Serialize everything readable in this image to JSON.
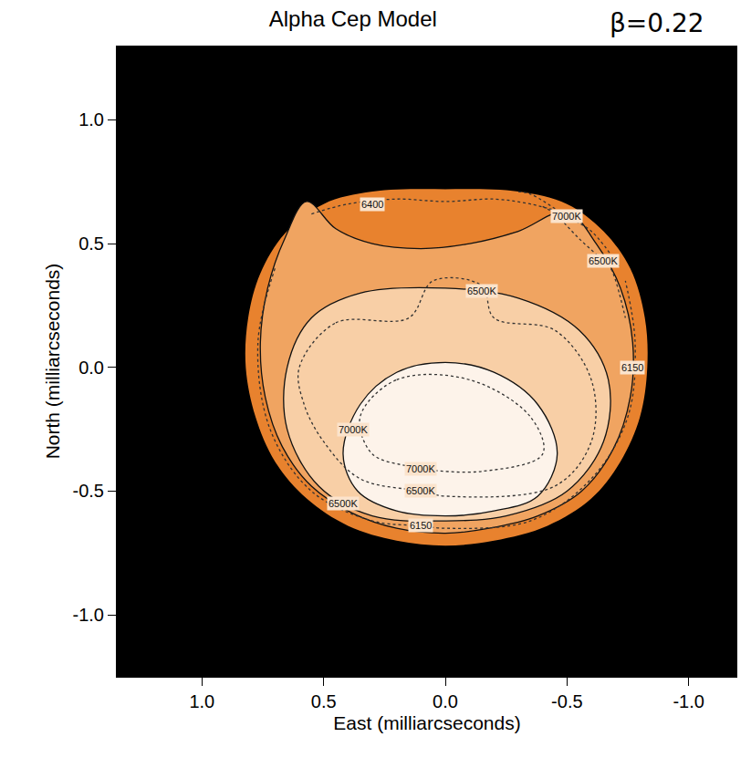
{
  "chart_data": {
    "type": "contour_map",
    "title": "Alpha Cep Model",
    "annotations": [
      "β=0.22"
    ],
    "x_label": "East (milliarcseconds)",
    "y_label": "North (milliarcseconds)",
    "xlim": [
      1.35,
      -1.2
    ],
    "ylim": [
      -1.25,
      1.3
    ],
    "xticks": [
      {
        "value": 1,
        "label": "1.0"
      },
      0.5,
      {
        "value": 0,
        "label": "0.0"
      },
      -0.5,
      {
        "value": -1,
        "label": "-1.0"
      }
    ],
    "yticks": [
      {
        "value": -1,
        "label": "-1.0"
      },
      -0.5,
      {
        "value": 0,
        "label": "0.0"
      },
      0.5,
      {
        "value": 1,
        "label": "1.0"
      }
    ],
    "grid": false,
    "series": [
      {
        "type": "area",
        "color": "#e8822e",
        "line_style": "none",
        "x": [
          0,
          -0.3,
          -0.5,
          -0.65,
          -0.76,
          -0.82,
          -0.83,
          -0.8,
          -0.72,
          -0.6,
          -0.42,
          -0.2,
          0,
          0.2,
          0.4,
          0.57,
          0.7,
          0.78,
          0.82,
          0.81,
          0.76,
          0.66,
          0.5,
          0.3,
          0
        ],
        "y": [
          0.72,
          0.71,
          0.66,
          0.55,
          0.4,
          0.2,
          0,
          -0.2,
          -0.38,
          -0.53,
          -0.64,
          -0.7,
          -0.72,
          -0.7,
          -0.64,
          -0.53,
          -0.38,
          -0.2,
          0,
          0.2,
          0.38,
          0.54,
          0.66,
          0.71,
          0.72
        ]
      },
      {
        "type": "area",
        "color": "#f0a461",
        "line_style": "solid",
        "x": [
          0.57,
          0.45,
          0.3,
          0.1,
          -0.1,
          -0.3,
          -0.5,
          -0.62,
          -0.72,
          -0.77,
          -0.76,
          -0.69,
          -0.56,
          -0.38,
          -0.18,
          0,
          0.2,
          0.38,
          0.55,
          0.67,
          0.74,
          0.76,
          0.73,
          0.66,
          0.57
        ],
        "y": [
          0.67,
          0.56,
          0.5,
          0.48,
          0.5,
          0.55,
          0.63,
          0.5,
          0.32,
          0.1,
          -0.12,
          -0.33,
          -0.5,
          -0.6,
          -0.65,
          -0.67,
          -0.65,
          -0.59,
          -0.48,
          -0.32,
          -0.12,
          0.1,
          0.32,
          0.52,
          0.67
        ],
        "labels": [
          {
            "text": "6150",
            "x": -0.77,
            "y": 0
          }
        ]
      },
      {
        "type": "area",
        "color": "#f8cfa6",
        "line_style": "solid",
        "x": [
          0.65,
          0.55,
          0.35,
          0,
          -0.3,
          -0.55,
          -0.67,
          -0.65,
          -0.5,
          -0.25,
          0,
          0.3,
          0.52,
          0.65,
          0.65
        ],
        "y": [
          0,
          0.2,
          0.3,
          0.32,
          0.28,
          0.15,
          -0.05,
          -0.3,
          -0.5,
          -0.6,
          -0.62,
          -0.6,
          -0.48,
          -0.25,
          0
        ],
        "labels": [
          {
            "text": "6500K",
            "x": -0.15,
            "y": 0.31
          },
          {
            "text": "6500K",
            "x": 0.42,
            "y": -0.55
          }
        ]
      },
      {
        "type": "area",
        "color": "#fdf3ea",
        "line_style": "solid",
        "x": [
          0.42,
          0.35,
          0.2,
          0,
          -0.2,
          -0.38,
          -0.46,
          -0.38,
          -0.2,
          0,
          0.2,
          0.36,
          0.42
        ],
        "y": [
          -0.35,
          -0.15,
          -0.02,
          0.02,
          -0.02,
          -0.15,
          -0.35,
          -0.52,
          -0.58,
          -0.6,
          -0.58,
          -0.5,
          -0.35
        ],
        "labels": [
          {
            "text": "7000K",
            "x": 0.38,
            "y": -0.25
          }
        ]
      },
      {
        "type": "line",
        "color": "#333333",
        "line_style": "dotted",
        "x": [
          0.55,
          0.4,
          0.2,
          0,
          -0.2,
          -0.35,
          -0.5
        ],
        "y": [
          0.62,
          0.66,
          0.68,
          0.67,
          0.68,
          0.66,
          0.62
        ],
        "labels": [
          {
            "text": "6400",
            "x": 0.3,
            "y": 0.66
          }
        ]
      },
      {
        "type": "line",
        "color": "#333333",
        "line_style": "dotted",
        "x": [
          -0.3,
          -0.35,
          -0.5,
          -0.6,
          -0.72
        ],
        "y": [
          0.71,
          0.7,
          0.61,
          0.55,
          0.4
        ],
        "labels": [
          {
            "text": "7000K",
            "x": -0.5,
            "y": 0.61
          }
        ]
      },
      {
        "type": "line",
        "color": "#333333",
        "line_style": "dotted",
        "x": [
          -0.4,
          -0.45,
          -0.55,
          -0.65,
          -0.68,
          -0.74
        ],
        "y": [
          0.65,
          0.62,
          0.52,
          0.43,
          0.4,
          0.2
        ],
        "labels": [
          {
            "text": "6500K",
            "x": -0.65,
            "y": 0.43
          }
        ]
      },
      {
        "type": "line",
        "color": "#333333",
        "line_style": "dotted",
        "x": [
          0.6,
          0.45,
          0.15,
          0.05,
          -0.15,
          -0.2,
          -0.45,
          -0.6,
          -0.6,
          -0.45,
          0,
          0.1,
          0.35,
          0.5,
          0.58,
          0.6
        ],
        "y": [
          0,
          0.18,
          0.2,
          0.35,
          0.33,
          0.2,
          0.15,
          -0.05,
          -0.3,
          -0.48,
          -0.52,
          -0.5,
          -0.45,
          -0.3,
          -0.15,
          0
        ],
        "labels": [
          {
            "text": "6500K",
            "x": 0.1,
            "y": -0.5
          }
        ]
      },
      {
        "type": "line",
        "color": "#333333",
        "line_style": "dotted",
        "x": [
          0.35,
          0.2,
          -0.1,
          -0.35,
          -0.4,
          -0.15,
          0.1,
          0.15,
          0.3,
          0.35
        ],
        "y": [
          -0.2,
          -0.05,
          -0.05,
          -0.2,
          -0.35,
          -0.42,
          -0.41,
          -0.4,
          -0.35,
          -0.2
        ],
        "labels": [
          {
            "text": "7000K",
            "x": 0.1,
            "y": -0.41
          }
        ]
      },
      {
        "type": "line",
        "color": "#333333",
        "line_style": "dotted",
        "x": [
          0.7,
          0.77,
          0.72,
          0.55,
          0.3,
          0.1,
          0,
          -0.35,
          -0.6,
          -0.75,
          -0.78,
          -0.74
        ],
        "y": [
          0.4,
          0.1,
          -0.25,
          -0.5,
          -0.62,
          -0.64,
          -0.65,
          -0.62,
          -0.45,
          -0.2,
          0.1,
          0.35
        ],
        "labels": [
          {
            "text": "6150",
            "x": 0.1,
            "y": -0.64
          }
        ]
      }
    ]
  }
}
